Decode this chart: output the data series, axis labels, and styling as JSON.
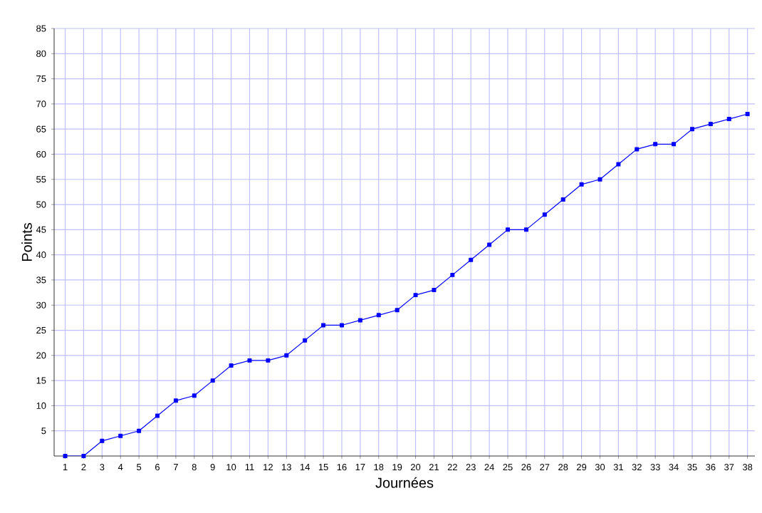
{
  "chart_data": {
    "type": "line",
    "xlabel": "Journées",
    "ylabel": "Points",
    "x": [
      1,
      2,
      3,
      4,
      5,
      6,
      7,
      8,
      9,
      10,
      11,
      12,
      13,
      14,
      15,
      16,
      17,
      18,
      19,
      20,
      21,
      22,
      23,
      24,
      25,
      26,
      27,
      28,
      29,
      30,
      31,
      32,
      33,
      34,
      35,
      36,
      37,
      38
    ],
    "series": [
      {
        "color": "#0000ff",
        "values": [
          0,
          0,
          3,
          4,
          5,
          8,
          11,
          12,
          15,
          18,
          19,
          19,
          20,
          23,
          26,
          26,
          27,
          28,
          29,
          32,
          33,
          36,
          39,
          42,
          45,
          45,
          48,
          51,
          54,
          55,
          58,
          61,
          62,
          62,
          65,
          66,
          67,
          68
        ]
      }
    ],
    "xlim": [
      0.4,
      38.4
    ],
    "ylim": [
      0,
      85
    ],
    "xticks": [
      1,
      2,
      3,
      4,
      5,
      6,
      7,
      8,
      9,
      10,
      11,
      12,
      13,
      14,
      15,
      16,
      17,
      18,
      19,
      20,
      21,
      22,
      23,
      24,
      25,
      26,
      27,
      28,
      29,
      30,
      31,
      32,
      33,
      34,
      35,
      36,
      37,
      38
    ],
    "yticks": [
      5,
      10,
      15,
      20,
      25,
      30,
      35,
      40,
      45,
      50,
      55,
      60,
      65,
      70,
      75,
      80,
      85
    ],
    "grid": true,
    "marker": "square",
    "line_style": "solid"
  }
}
